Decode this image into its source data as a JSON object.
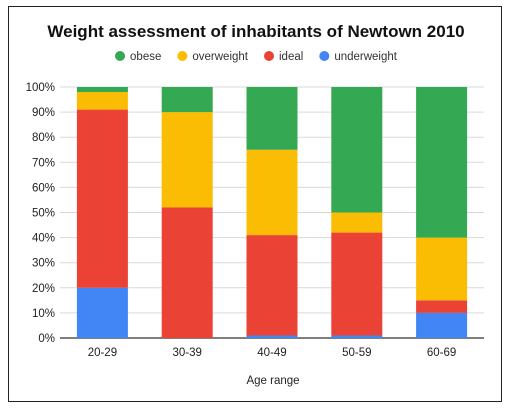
{
  "chart_data": {
    "type": "bar",
    "stacked": true,
    "title": "Weight assessment of inhabitants of Newtown 2010",
    "xlabel": "Age range",
    "ylabel": "",
    "ylim": [
      0,
      100
    ],
    "y_ticks": [
      "0%",
      "10%",
      "20%",
      "30%",
      "40%",
      "50%",
      "60%",
      "70%",
      "80%",
      "90%",
      "100%"
    ],
    "categories": [
      "20-29",
      "30-39",
      "40-49",
      "50-59",
      "60-69"
    ],
    "series": [
      {
        "name": "underweight",
        "color": "#4285f4",
        "values": [
          20,
          0,
          1,
          1,
          10
        ]
      },
      {
        "name": "ideal",
        "color": "#ea4335",
        "values": [
          71,
          52,
          40,
          41,
          5
        ]
      },
      {
        "name": "overweight",
        "color": "#fbbc04",
        "values": [
          7,
          38,
          34,
          8,
          25
        ]
      },
      {
        "name": "obese",
        "color": "#34a853",
        "values": [
          2,
          10,
          25,
          50,
          60
        ]
      }
    ],
    "legend": {
      "position": "top",
      "order": [
        "obese",
        "overweight",
        "ideal",
        "underweight"
      ]
    },
    "grid": true
  }
}
